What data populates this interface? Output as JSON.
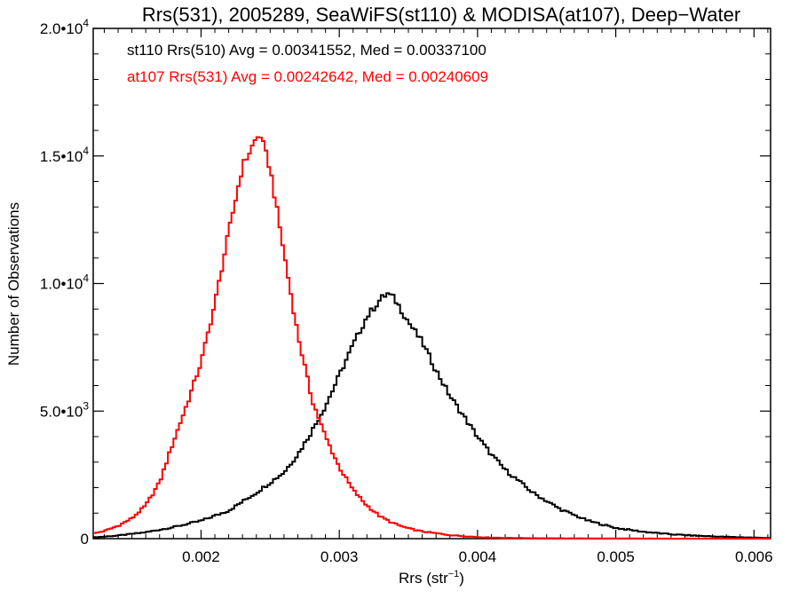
{
  "chart_data": {
    "type": "line",
    "title": "Rrs(531), 2005289, SeaWiFS(st110) & MODISA(at107), Deep−Water",
    "xlabel_main": "Rrs (str",
    "xlabel_sup": "−1",
    "xlabel_tail": ")",
    "ylabel": "Number of Observations",
    "xlim": [
      0.00122,
      0.00612
    ],
    "ylim": [
      0,
      20000
    ],
    "xticks": [
      {
        "value": 0.002,
        "label": "0.002"
      },
      {
        "value": 0.003,
        "label": "0.003"
      },
      {
        "value": 0.004,
        "label": "0.004"
      },
      {
        "value": 0.005,
        "label": "0.005"
      },
      {
        "value": 0.006,
        "label": "0.006"
      }
    ],
    "yticks": [
      {
        "value": 0,
        "mant": "0",
        "exp": ""
      },
      {
        "value": 5000,
        "mant": "5.0•10",
        "exp": "3"
      },
      {
        "value": 10000,
        "mant": "1.0•10",
        "exp": "4"
      },
      {
        "value": 15000,
        "mant": "1.5•10",
        "exp": "4"
      },
      {
        "value": 20000,
        "mant": "2.0•10",
        "exp": "4"
      }
    ],
    "grid": false,
    "legend_position": "top-left",
    "series": [
      {
        "name": "st110 Rrs(510) Avg = 0.00341552, Med = 0.00337100",
        "color": "#000000",
        "x": [
          0.00122,
          0.0014,
          0.0016,
          0.0018,
          0.002,
          0.0022,
          0.0024,
          0.0026,
          0.0027,
          0.0028,
          0.0029,
          0.003,
          0.0031,
          0.0032,
          0.0033,
          0.00335,
          0.0034,
          0.0035,
          0.0036,
          0.0037,
          0.0038,
          0.0039,
          0.004,
          0.0041,
          0.0042,
          0.0044,
          0.0046,
          0.0048,
          0.005,
          0.0052,
          0.0054,
          0.0056,
          0.0058,
          0.006,
          0.00612
        ],
        "y": [
          50,
          120,
          250,
          450,
          700,
          1100,
          1800,
          2600,
          3300,
          4200,
          5200,
          6400,
          7600,
          8700,
          9400,
          9600,
          9400,
          8500,
          7700,
          6600,
          5600,
          4800,
          4000,
          3300,
          2700,
          1800,
          1150,
          700,
          420,
          270,
          170,
          110,
          70,
          40,
          30
        ]
      },
      {
        "name": "at107 Rrs(531) Avg = 0.00242642, Med = 0.00240609",
        "color": "#ff0000",
        "x": [
          0.00122,
          0.0013,
          0.0014,
          0.0015,
          0.0016,
          0.0017,
          0.0018,
          0.0019,
          0.002,
          0.0021,
          0.0022,
          0.0023,
          0.0024,
          0.00243,
          0.0025,
          0.0026,
          0.0027,
          0.0028,
          0.0029,
          0.003,
          0.0031,
          0.0032,
          0.0033,
          0.0034,
          0.0035,
          0.0036,
          0.0038,
          0.004,
          0.0042,
          0.0045,
          0.005,
          0.0055,
          0.006,
          0.00612
        ],
        "y": [
          200,
          300,
          500,
          800,
          1300,
          2200,
          3800,
          5300,
          6900,
          9200,
          12000,
          14600,
          15700,
          15800,
          14500,
          11200,
          8000,
          5500,
          4000,
          2800,
          1900,
          1300,
          850,
          580,
          400,
          280,
          140,
          60,
          30,
          15,
          6,
          3,
          2,
          2
        ]
      }
    ]
  }
}
